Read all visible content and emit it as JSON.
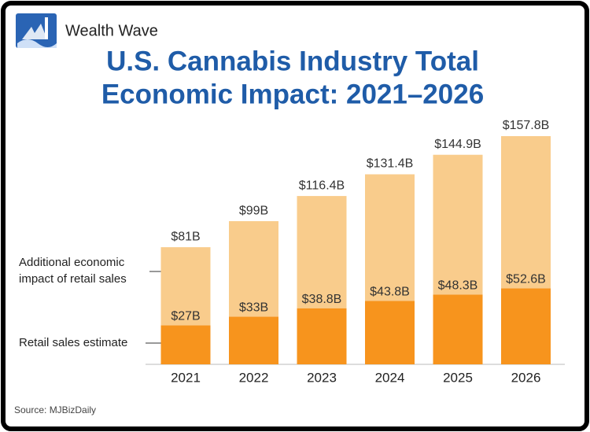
{
  "brand": "Wealth Wave",
  "source": "Source: MJBizDaily",
  "chart_data": {
    "type": "stacked-bar",
    "title": "U.S. Cannabis Industry Total",
    "subtitle": "Economic Impact: 2021–2026",
    "categories": [
      "2021",
      "2022",
      "2023",
      "2024",
      "2025",
      "2026"
    ],
    "series": [
      {
        "name": "Retail sales estimate",
        "color": "#f7941d",
        "values": [
          27,
          33,
          38.8,
          43.8,
          48.3,
          52.6
        ],
        "value_labels": [
          "$27B",
          "$33B",
          "$38.8B",
          "$43.8B",
          "$48.3B",
          "$52.6B"
        ]
      },
      {
        "name": "Additional economic impact of retail sales",
        "color": "#f9cc8c",
        "values": [
          54,
          66,
          77.6,
          87.6,
          96.6,
          105.2
        ]
      }
    ],
    "totals": {
      "values": [
        81,
        99,
        116.4,
        131.4,
        144.9,
        157.8
      ],
      "value_labels": [
        "$81B",
        "$99B",
        "$116.4B",
        "$131.4B",
        "$144.9B",
        "$157.8B"
      ]
    }
  }
}
